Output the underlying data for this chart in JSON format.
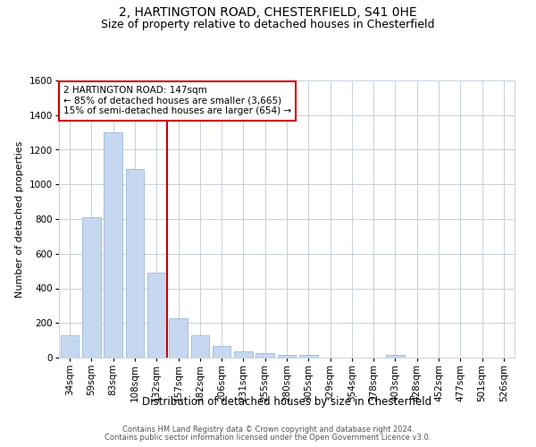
{
  "title1": "2, HARTINGTON ROAD, CHESTERFIELD, S41 0HE",
  "title2": "Size of property relative to detached houses in Chesterfield",
  "xlabel": "Distribution of detached houses by size in Chesterfield",
  "ylabel": "Number of detached properties",
  "categories": [
    "34sqm",
    "59sqm",
    "83sqm",
    "108sqm",
    "132sqm",
    "157sqm",
    "182sqm",
    "206sqm",
    "231sqm",
    "255sqm",
    "280sqm",
    "305sqm",
    "329sqm",
    "354sqm",
    "378sqm",
    "403sqm",
    "428sqm",
    "452sqm",
    "477sqm",
    "501sqm",
    "526sqm"
  ],
  "values": [
    130,
    810,
    1300,
    1090,
    490,
    225,
    130,
    65,
    35,
    25,
    15,
    15,
    0,
    0,
    0,
    15,
    0,
    0,
    0,
    0,
    0
  ],
  "bar_color": "#c5d8f0",
  "bar_edge_color": "#9ab8d8",
  "grid_color": "#c8d0dc",
  "vline_x": 4.5,
  "vline_color": "#cc0000",
  "annotation_text": "2 HARTINGTON ROAD: 147sqm\n← 85% of detached houses are smaller (3,665)\n15% of semi-detached houses are larger (654) →",
  "annotation_box_color": "white",
  "annotation_box_edge": "#cc0000",
  "ylim": [
    0,
    1600
  ],
  "yticks": [
    0,
    200,
    400,
    600,
    800,
    1000,
    1200,
    1400,
    1600
  ],
  "footer1": "Contains HM Land Registry data © Crown copyright and database right 2024.",
  "footer2": "Contains public sector information licensed under the Open Government Licence v3.0.",
  "title1_fontsize": 10,
  "title2_fontsize": 9,
  "tick_fontsize": 7.5,
  "ylabel_fontsize": 8,
  "xlabel_fontsize": 8.5,
  "annot_fontsize": 7.5,
  "footer_fontsize": 6
}
